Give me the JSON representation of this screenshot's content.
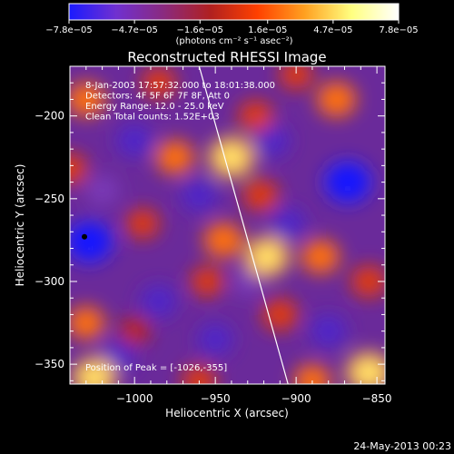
{
  "chart_data": {
    "type": "heatmap",
    "title": "Reconstructed RHESSI Image",
    "xlabel": "Heliocentric X (arcsec)",
    "ylabel": "Heliocentric Y (arcsec)",
    "xlim": [
      -1040,
      -845
    ],
    "ylim": [
      -362,
      -170
    ],
    "x_ticks": [
      -1000,
      -950,
      -900,
      -850
    ],
    "x_tick_labels": [
      "−1000",
      "−950",
      "−900",
      "−850"
    ],
    "y_ticks": [
      -200,
      -250,
      -300,
      -350
    ],
    "y_tick_labels": [
      "−200",
      "−250",
      "−300",
      "−350"
    ],
    "colorbar": {
      "ticks": [
        -7.8e-05,
        -4.7e-05,
        -1.6e-05,
        1.6e-05,
        4.7e-05,
        7.8e-05
      ],
      "tick_labels": [
        "−7.8e−05",
        "−4.7e−05",
        "−1.6e−05",
        "1.6e−05",
        "4.7e−05",
        "7.8e−05"
      ],
      "label": "(photons cm⁻² s⁻¹ asec⁻²)",
      "colors": [
        "#1a1aff",
        "#7030d0",
        "#8a2a80",
        "#b02020",
        "#ff4000",
        "#ffa020",
        "#ffff80",
        "#ffffff"
      ]
    },
    "annotations": [
      "8-Jan-2003 17:57:32.000 to 18:01:38.000",
      "Detectors: 4F 5F 6F 7F 8F, Att 0",
      "Energy Range: 12.0 - 25.0 keV",
      "Clean     Total counts: 1.52E+03"
    ],
    "peak_label": "Position of Peak = [-1026,-355]",
    "peak": {
      "x": -1026,
      "y": -355
    },
    "marker": {
      "x": -1031,
      "y": -273
    },
    "limb_line": [
      [
        -960,
        -170
      ],
      [
        -905,
        -362
      ]
    ],
    "blobs": [
      {
        "x": -1028,
        "y": -276,
        "v": -1.0
      },
      {
        "x": -868,
        "y": -240,
        "v": -1.0
      },
      {
        "x": -1000,
        "y": -215,
        "v": -0.6
      },
      {
        "x": -960,
        "y": -248,
        "v": -0.6
      },
      {
        "x": -915,
        "y": -215,
        "v": -0.55
      },
      {
        "x": -905,
        "y": -265,
        "v": -0.55
      },
      {
        "x": -985,
        "y": -312,
        "v": -0.6
      },
      {
        "x": -950,
        "y": -335,
        "v": -0.55
      },
      {
        "x": -880,
        "y": -330,
        "v": -0.6
      },
      {
        "x": -1010,
        "y": -345,
        "v": -0.5
      },
      {
        "x": -930,
        "y": -300,
        "v": -0.4
      },
      {
        "x": -1020,
        "y": -245,
        "v": -0.45
      },
      {
        "x": -1030,
        "y": -190,
        "v": 0.65
      },
      {
        "x": -1030,
        "y": -325,
        "v": 0.6
      },
      {
        "x": -1025,
        "y": -358,
        "v": 0.9
      },
      {
        "x": -985,
        "y": -180,
        "v": 0.5
      },
      {
        "x": -975,
        "y": -225,
        "v": 0.65
      },
      {
        "x": -995,
        "y": -265,
        "v": 0.45
      },
      {
        "x": -940,
        "y": -225,
        "v": 0.95
      },
      {
        "x": -925,
        "y": -200,
        "v": 0.5
      },
      {
        "x": -945,
        "y": -275,
        "v": 0.7
      },
      {
        "x": -918,
        "y": -285,
        "v": 0.9
      },
      {
        "x": -922,
        "y": -248,
        "v": 0.55
      },
      {
        "x": -910,
        "y": -320,
        "v": 0.55
      },
      {
        "x": -875,
        "y": -190,
        "v": 0.7
      },
      {
        "x": -885,
        "y": -285,
        "v": 0.65
      },
      {
        "x": -855,
        "y": -300,
        "v": 0.55
      },
      {
        "x": -855,
        "y": -355,
        "v": 0.95
      },
      {
        "x": -890,
        "y": -360,
        "v": 0.6
      },
      {
        "x": -960,
        "y": -360,
        "v": 0.5
      },
      {
        "x": -955,
        "y": -300,
        "v": 0.45
      },
      {
        "x": -1000,
        "y": -330,
        "v": 0.35
      },
      {
        "x": -900,
        "y": -175,
        "v": 0.45
      },
      {
        "x": -1040,
        "y": -232,
        "v": 0.5
      }
    ]
  },
  "footer": {
    "timestamp": "24-May-2013 00:23"
  }
}
